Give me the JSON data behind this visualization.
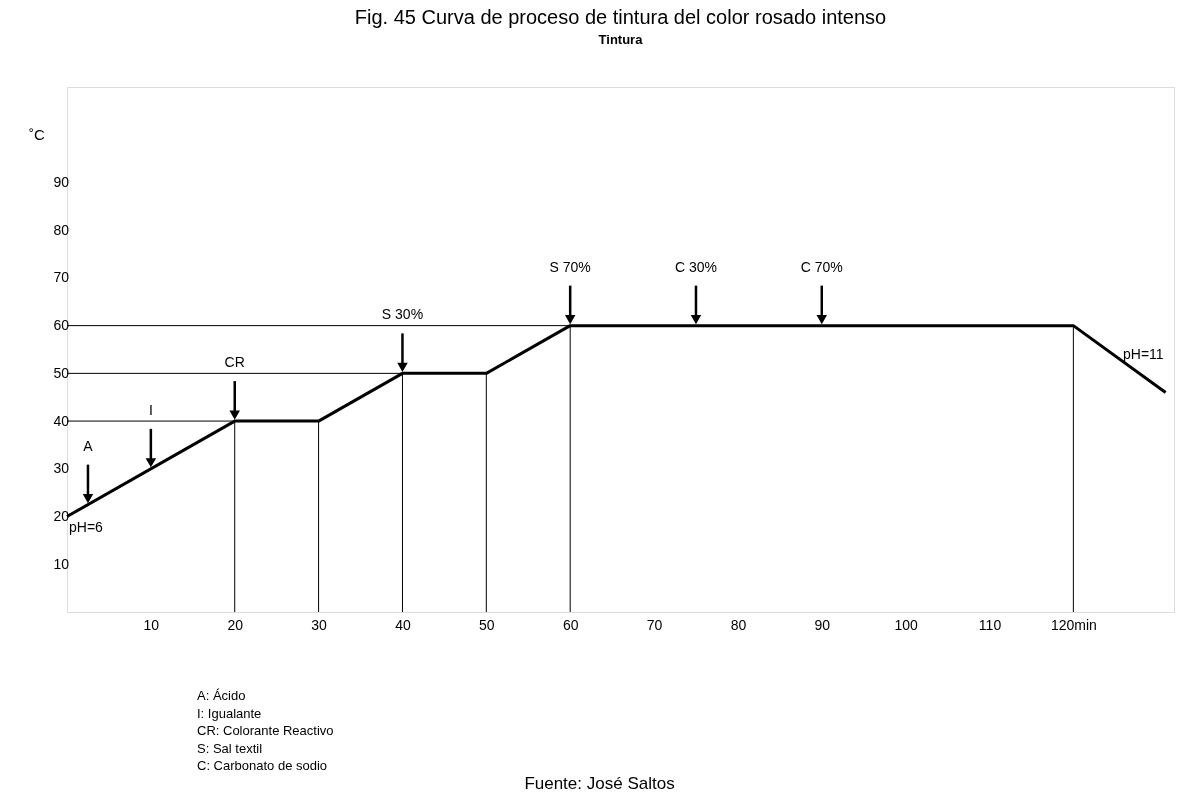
{
  "chart_data": {
    "type": "line",
    "title": "Fig. 45 Curva de proceso de tintura del color rosado intenso",
    "subtitle": "Tintura",
    "ylabel": "˚C",
    "xlim": [
      0,
      132
    ],
    "ylim": [
      0,
      110
    ],
    "xticks": [
      10,
      20,
      30,
      40,
      50,
      60,
      70,
      80,
      90,
      100,
      110,
      {
        "value": 120,
        "label": "120min"
      }
    ],
    "yticks": [
      10,
      20,
      30,
      40,
      50,
      60,
      70,
      80,
      90
    ],
    "grid": false,
    "marker": "none",
    "line_style": "solid",
    "series": [
      {
        "color": "#000000",
        "x": [
          0,
          20,
          30,
          40,
          50,
          60,
          120,
          131
        ],
        "values": [
          20,
          40,
          40,
          50,
          50,
          60,
          60,
          46
        ]
      },
      {
        "color": "#000000",
        "x": [
          20,
          20
        ],
        "values": [
          0,
          40
        ]
      },
      {
        "color": "#000000",
        "x": [
          30,
          30
        ],
        "values": [
          0,
          40
        ]
      },
      {
        "color": "#000000",
        "x": [
          40,
          40
        ],
        "values": [
          0,
          50
        ]
      },
      {
        "color": "#000000",
        "x": [
          50,
          50
        ],
        "values": [
          0,
          50
        ]
      },
      {
        "color": "#000000",
        "x": [
          60,
          60
        ],
        "values": [
          0,
          60
        ]
      },
      {
        "color": "#000000",
        "x": [
          120,
          120
        ],
        "values": [
          0,
          60
        ]
      },
      {
        "color": "#000000",
        "x": [
          0,
          20
        ],
        "values": [
          40,
          40
        ]
      },
      {
        "color": "#000000",
        "x": [
          0,
          40
        ],
        "values": [
          50,
          50
        ]
      },
      {
        "color": "#000000",
        "x": [
          0,
          60
        ],
        "values": [
          60,
          60
        ]
      }
    ],
    "annotations": [
      {
        "text": "A",
        "x": 2.5,
        "y": 22.5
      },
      {
        "text": "I",
        "x": 10,
        "y": 30
      },
      {
        "text": "CR",
        "x": 20,
        "y": 40
      },
      {
        "text": "S 30%",
        "x": 40,
        "y": 50
      },
      {
        "text": "S 70%",
        "x": 60,
        "y": 60
      },
      {
        "text": "C 30%",
        "x": 75,
        "y": 60
      },
      {
        "text": "C 70%",
        "x": 90,
        "y": 60
      },
      {
        "text": "pH=6",
        "x": 0,
        "y": 20
      },
      {
        "text": "pH=11",
        "x": 131,
        "y": 46
      },
      "A: Ácido",
      "I: Igualante",
      "CR: Colorante Reactivo",
      "S: Sal textil",
      "C: Carbonato de sodio",
      "Fuente: José Saltos"
    ]
  }
}
